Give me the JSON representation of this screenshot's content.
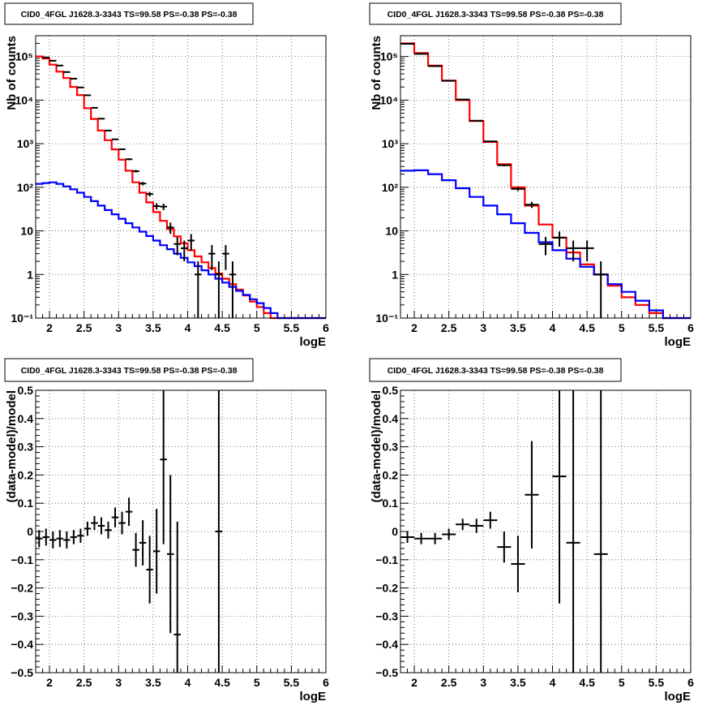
{
  "chart_data": [
    {
      "type": "line",
      "title": "CID0_4FGL J1628.3-3343 TS=99.58 PS=-0.38 PS=-0.38",
      "xlabel": "logE",
      "ylabel": "Nb of counts",
      "log_y": true,
      "grid": true,
      "xlim": [
        1.8,
        6
      ],
      "ylim": [
        0.1,
        300000
      ],
      "x_ticks": [
        "2",
        "2.5",
        "3",
        "3.5",
        "4",
        "4.5",
        "5",
        "5.5",
        "6"
      ],
      "y_ticks": [
        "10⁻¹",
        "1",
        "10",
        "10²",
        "10³",
        "10⁴",
        "10⁵"
      ],
      "series": [
        {
          "color": "#ff0000",
          "style": "step",
          "bin_edges": [
            1.8,
            1.9,
            2.0,
            2.1,
            2.2,
            2.3,
            2.4,
            2.5,
            2.6,
            2.7,
            2.8,
            2.9,
            3.0,
            3.1,
            3.2,
            3.3,
            3.4,
            3.5,
            3.6,
            3.7,
            3.8,
            3.9,
            4.0,
            4.1,
            4.2,
            4.3,
            4.4,
            4.5,
            4.6,
            4.7,
            4.8,
            4.9,
            5.0,
            5.1,
            5.2,
            5.3,
            5.4,
            5.5,
            5.6,
            5.7,
            5.8,
            5.9,
            6.0
          ],
          "values": [
            100000,
            90000,
            65000,
            45000,
            32000,
            20000,
            13000,
            6500,
            3700,
            2000,
            1200,
            740,
            430,
            240,
            130,
            75,
            45,
            27,
            17,
            11,
            7.5,
            5.2,
            3.6,
            2.6,
            1.9,
            1.4,
            1.05,
            0.8,
            0.6,
            0.45,
            0.33,
            0.24,
            0.18,
            0.13,
            0.1,
            0.1,
            0.1,
            0.1,
            0.1,
            0.1,
            0.1,
            0.1
          ]
        },
        {
          "color": "#0000ff",
          "style": "step",
          "bin_edges": [
            1.8,
            1.9,
            2.0,
            2.1,
            2.2,
            2.3,
            2.4,
            2.5,
            2.6,
            2.7,
            2.8,
            2.9,
            3.0,
            3.1,
            3.2,
            3.3,
            3.4,
            3.5,
            3.6,
            3.7,
            3.8,
            3.9,
            4.0,
            4.1,
            4.2,
            4.3,
            4.4,
            4.5,
            4.6,
            4.7,
            4.8,
            4.9,
            5.0,
            5.1,
            5.2,
            5.3,
            5.4,
            5.5,
            5.6,
            5.7,
            5.8,
            5.9,
            6.0
          ],
          "values": [
            120,
            125,
            130,
            120,
            105,
            90,
            75,
            60,
            48,
            38,
            30,
            24,
            19,
            15,
            12,
            9.6,
            7.6,
            6.0,
            4.7,
            3.8,
            3.0,
            2.4,
            1.9,
            1.55,
            1.25,
            1.0,
            0.8,
            0.65,
            0.52,
            0.42,
            0.34,
            0.27,
            0.22,
            0.17,
            0.13,
            0.1,
            0.1,
            0.1,
            0.1,
            0.1,
            0.1,
            0.1
          ]
        },
        {
          "color": "#000000",
          "style": "points",
          "x": [
            1.95,
            2.05,
            2.15,
            2.25,
            2.35,
            2.45,
            2.55,
            2.65,
            2.75,
            2.85,
            2.95,
            3.05,
            3.15,
            3.25,
            3.35,
            3.45,
            3.55,
            3.65,
            3.75,
            3.85,
            3.95,
            4.05,
            4.15,
            4.35,
            4.45,
            4.55,
            4.65
          ],
          "y": [
            95000,
            80000,
            62000,
            44000,
            31000,
            19500,
            12900,
            6650,
            3750,
            2000,
            1260,
            745,
            440,
            234,
            122,
            70,
            37,
            36,
            12,
            5,
            4,
            6,
            1,
            3,
            1,
            3,
            1
          ],
          "xerr": 0.05
        }
      ]
    },
    {
      "type": "line",
      "title": "CID0_4FGL J1628.3-3343 TS=99.58 PS=-0.38 PS=-0.38",
      "xlabel": "logE",
      "ylabel": "Nb of counts",
      "log_y": true,
      "grid": true,
      "xlim": [
        1.8,
        6
      ],
      "ylim": [
        0.1,
        300000
      ],
      "x_ticks": [
        "2",
        "2.5",
        "3",
        "3.5",
        "4",
        "4.5",
        "5",
        "5.5",
        "6"
      ],
      "y_ticks": [
        "10⁻¹",
        "1",
        "10",
        "10²",
        "10³",
        "10⁴",
        "10⁵"
      ],
      "series": [
        {
          "color": "#ff0000",
          "style": "step",
          "bin_edges": [
            1.8,
            2.0,
            2.2,
            2.4,
            2.6,
            2.8,
            3.0,
            3.2,
            3.4,
            3.6,
            3.8,
            4.0,
            4.2,
            4.4,
            4.6,
            4.8,
            5.0,
            5.2,
            5.4,
            5.6,
            5.8,
            6.0
          ],
          "values": [
            200000,
            120000,
            62000,
            28000,
            10000,
            3300,
            1100,
            340,
            100,
            38,
            14,
            7,
            3.2,
            1.7,
            1.0,
            0.55,
            0.3,
            0.2,
            0.13,
            0.1,
            0.1
          ]
        },
        {
          "color": "#0000ff",
          "style": "step",
          "bin_edges": [
            1.8,
            2.0,
            2.2,
            2.4,
            2.6,
            2.8,
            3.0,
            3.2,
            3.4,
            3.6,
            3.8,
            4.0,
            4.2,
            4.4,
            4.6,
            4.8,
            5.0,
            5.2,
            5.4,
            5.6,
            5.8,
            6.0
          ],
          "values": [
            240,
            245,
            200,
            145,
            95,
            60,
            38,
            24,
            15,
            9,
            5.5,
            3.6,
            2.3,
            1.5,
            1.0,
            0.6,
            0.4,
            0.25,
            0.15,
            0.1,
            0.1
          ]
        },
        {
          "color": "#000000",
          "style": "points",
          "x": [
            1.9,
            2.1,
            2.3,
            2.5,
            2.7,
            2.9,
            3.1,
            3.3,
            3.5,
            3.7,
            3.9,
            4.1,
            4.3,
            4.5,
            4.7
          ],
          "y": [
            195000,
            115000,
            60000,
            27700,
            10300,
            3370,
            1130,
            320,
            92,
            40,
            5,
            7,
            4,
            4,
            1
          ],
          "xerr": 0.1
        }
      ]
    },
    {
      "type": "scatter",
      "title": "CID0_4FGL J1628.3-3343 TS=99.58 PS=-0.38 PS=-0.38",
      "xlabel": "logE",
      "ylabel": "(data-model)/model",
      "grid": true,
      "xlim": [
        1.8,
        6
      ],
      "ylim": [
        -0.5,
        0.5
      ],
      "x_ticks": [
        "2",
        "2.5",
        "3",
        "3.5",
        "4",
        "4.5",
        "5",
        "5.5",
        "6"
      ],
      "y_ticks": [
        "−0.5",
        "−0.4",
        "−0.3",
        "−0.2",
        "−0.1",
        "0",
        "0.1",
        "0.2",
        "0.3",
        "0.4",
        "0.5"
      ],
      "series": [
        {
          "color": "#000000",
          "x": [
            1.85,
            1.95,
            2.05,
            2.15,
            2.25,
            2.35,
            2.45,
            2.55,
            2.65,
            2.75,
            2.85,
            2.95,
            3.05,
            3.15,
            3.25,
            3.35,
            3.45,
            3.55,
            3.65,
            3.75,
            3.85,
            4.45
          ],
          "y": [
            -0.025,
            -0.02,
            -0.03,
            -0.025,
            -0.03,
            -0.02,
            -0.015,
            0.01,
            0.03,
            0.02,
            0.005,
            0.05,
            0.03,
            0.07,
            -0.065,
            -0.04,
            -0.135,
            -0.07,
            0.255,
            -0.08,
            -0.365,
            0.0
          ],
          "yerr": [
            0.03,
            0.03,
            0.03,
            0.03,
            0.03,
            0.025,
            0.025,
            0.025,
            0.025,
            0.03,
            0.03,
            0.035,
            0.04,
            0.05,
            0.06,
            0.08,
            0.12,
            0.15,
            0.3,
            0.28,
            0.4,
            1.0
          ],
          "xerr": 0.05
        }
      ]
    },
    {
      "type": "scatter",
      "title": "CID0_4FGL J1628.3-3343 TS=99.58 PS=-0.38 PS=-0.38",
      "xlabel": "logE",
      "ylabel": "(data-model)/model",
      "grid": true,
      "xlim": [
        1.8,
        6
      ],
      "ylim": [
        -0.5,
        0.5
      ],
      "x_ticks": [
        "2",
        "2.5",
        "3",
        "3.5",
        "4",
        "4.5",
        "5",
        "5.5",
        "6"
      ],
      "y_ticks": [
        "−0.5",
        "−0.4",
        "−0.3",
        "−0.2",
        "−0.1",
        "0",
        "0.1",
        "0.2",
        "0.3",
        "0.4",
        "0.5"
      ],
      "series": [
        {
          "color": "#000000",
          "x": [
            1.9,
            2.1,
            2.3,
            2.5,
            2.7,
            2.9,
            3.1,
            3.3,
            3.5,
            3.7,
            4.1,
            4.3,
            4.7
          ],
          "y": [
            -0.02,
            -0.025,
            -0.025,
            -0.01,
            0.025,
            0.02,
            0.04,
            -0.055,
            -0.115,
            0.13,
            0.195,
            -0.04,
            -0.08
          ],
          "yerr": [
            0.02,
            0.02,
            0.02,
            0.02,
            0.02,
            0.025,
            0.03,
            0.055,
            0.1,
            0.19,
            0.45,
            0.6,
            0.6
          ],
          "xerr": 0.1
        }
      ]
    }
  ]
}
